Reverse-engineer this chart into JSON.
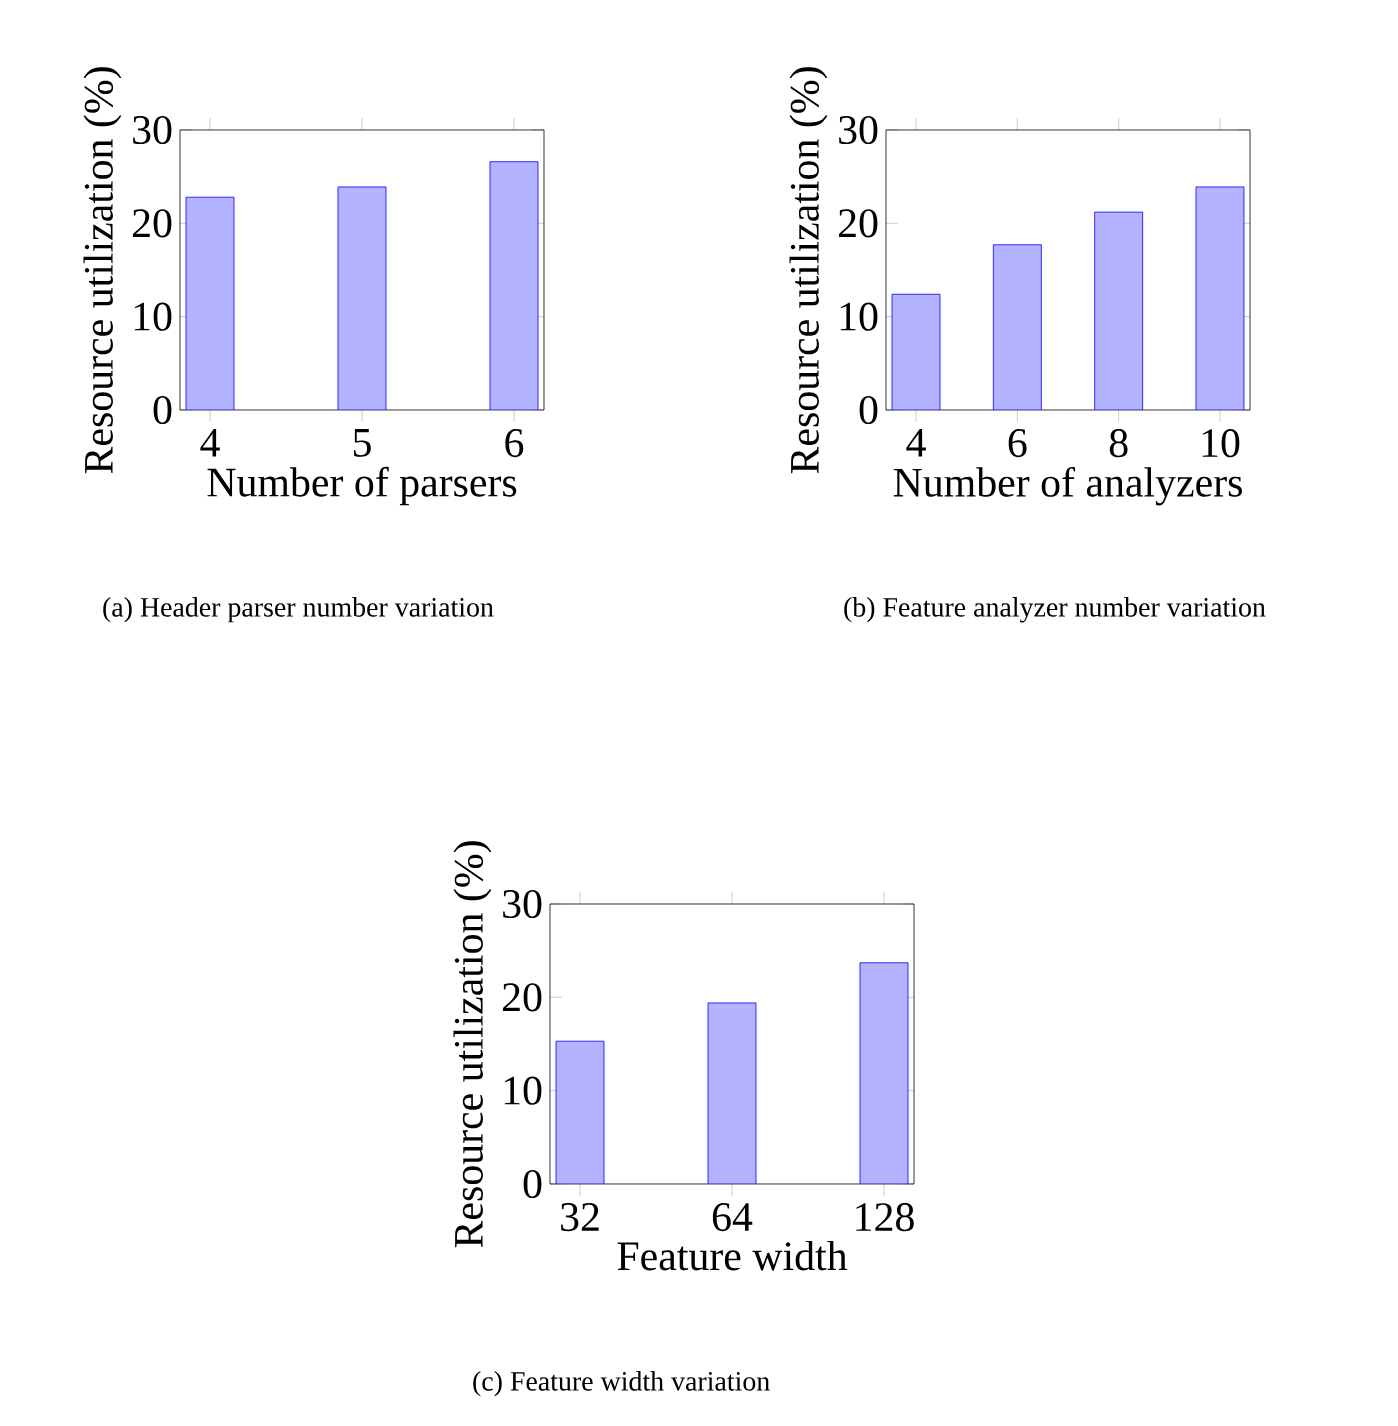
{
  "chart_data": [
    {
      "type": "bar",
      "title": "(a) Header parser number variation",
      "xlabel": "Number of parsers",
      "ylabel": "Resource utilization (%)",
      "categories": [
        "4",
        "5",
        "6"
      ],
      "values": [
        22.8,
        23.9,
        26.6
      ],
      "color": "#b3b3ff",
      "ylim": [
        0,
        30
      ],
      "yticks": [
        0,
        10,
        20,
        30
      ]
    },
    {
      "type": "bar",
      "title": "(b) Feature analyzer number variation",
      "xlabel": "Number of analyzers",
      "ylabel": "Resource utilization (%)",
      "categories": [
        "4",
        "6",
        "8",
        "10"
      ],
      "values": [
        12.4,
        17.7,
        21.2,
        23.9
      ],
      "color": "#b3b3ff",
      "ylim": [
        0,
        30
      ],
      "yticks": [
        0,
        10,
        20,
        30
      ]
    },
    {
      "type": "bar",
      "title": "(c) Feature width variation",
      "xlabel": "Feature width",
      "ylabel": "Resource utilization (%)",
      "categories": [
        "32",
        "64",
        "128"
      ],
      "values": [
        15.3,
        19.4,
        23.7
      ],
      "color": "#b3b3ff",
      "ylim": [
        0,
        30
      ],
      "yticks": [
        0,
        10,
        20,
        30
      ]
    }
  ]
}
